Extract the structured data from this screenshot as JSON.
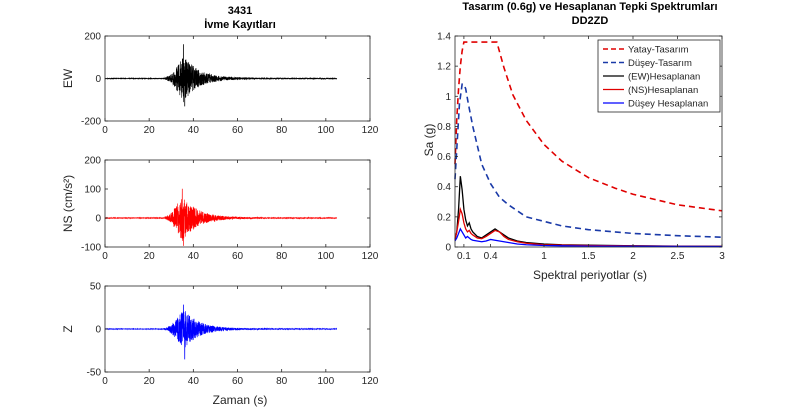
{
  "figure": {
    "left_title": "3431",
    "left_subtitle": "İvme Kayıtları",
    "right_title": "Tasarım (0.6g) ve Hesaplanan Tepki Spektrumları",
    "right_subtitle": "DD2ZD",
    "xlabel_left": "Zaman (s)",
    "xlabel_right": "Spektral periyotlar (s)",
    "ylabel_right": "Sa (g)"
  },
  "chart_data": [
    {
      "type": "line",
      "panel": "EW",
      "ylabel": "EW",
      "xlim": [
        0,
        120
      ],
      "ylim": [
        -200,
        200
      ],
      "xticks": [
        0,
        20,
        40,
        60,
        80,
        100,
        120
      ],
      "yticks": [
        -200,
        0,
        200
      ],
      "series": [
        {
          "color": "#000000",
          "record": {
            "start": 0,
            "end": 105,
            "onset": 27,
            "peak_time": 35.5,
            "peak": 160,
            "trough": -130,
            "coda_end": 72
          }
        }
      ]
    },
    {
      "type": "line",
      "panel": "NS",
      "ylabel": "NS (cm/s²)",
      "xlim": [
        0,
        120
      ],
      "ylim": [
        -100,
        200
      ],
      "xticks": [
        0,
        20,
        40,
        60,
        80,
        100,
        120
      ],
      "yticks": [
        -100,
        0,
        100,
        200
      ],
      "series": [
        {
          "color": "#ff0000",
          "record": {
            "start": 0,
            "end": 105,
            "onset": 27,
            "peak_time": 35,
            "peak": 100,
            "trough": -95,
            "coda_end": 72
          }
        }
      ]
    },
    {
      "type": "line",
      "panel": "Z",
      "ylabel": "Z",
      "xlim": [
        0,
        120
      ],
      "ylim": [
        -50,
        50
      ],
      "xticks": [
        0,
        20,
        40,
        60,
        80,
        100,
        120
      ],
      "yticks": [
        -50,
        0,
        50
      ],
      "series": [
        {
          "color": "#0000ff",
          "record": {
            "start": 0,
            "end": 105,
            "onset": 27,
            "peak_time": 35.5,
            "peak": 28,
            "trough": -35,
            "coda_end": 75
          }
        }
      ]
    },
    {
      "type": "line",
      "panel": "spectra",
      "xlim": [
        0,
        3
      ],
      "ylim": [
        0,
        1.4
      ],
      "xticks": [
        0.1,
        0.4,
        1,
        1.5,
        2,
        2.5,
        3
      ],
      "xtick_labels": [
        "0.1",
        "0.4",
        "1",
        "1.5",
        "2",
        "2.5",
        "3"
      ],
      "yticks": [
        0,
        0.2,
        0.4,
        0.6,
        0.8,
        1,
        1.2,
        1.4
      ],
      "ytick_labels": [
        "0",
        "0.2",
        "0.4",
        "0.6",
        "0.8",
        "1",
        "1.2",
        "1.4"
      ],
      "legend_position": "top-right",
      "series": [
        {
          "name": "Yatay-Tasarım",
          "color": "#e00000",
          "dash": true,
          "width": 1.6,
          "x": [
            0,
            0.02,
            0.04,
            0.06,
            0.08,
            0.1,
            0.12,
            0.15,
            0.2,
            0.3,
            0.4,
            0.47,
            0.55,
            0.65,
            0.8,
            1.0,
            1.2,
            1.5,
            1.8,
            2.0,
            2.5,
            3.0
          ],
          "y": [
            0.55,
            0.85,
            1.05,
            1.2,
            1.3,
            1.36,
            1.36,
            1.36,
            1.36,
            1.36,
            1.36,
            1.36,
            1.19,
            1.01,
            0.84,
            0.68,
            0.57,
            0.46,
            0.39,
            0.35,
            0.28,
            0.24
          ]
        },
        {
          "name": "Düşey-Tasarım",
          "color": "#1a3aa8",
          "dash": true,
          "width": 1.6,
          "x": [
            0,
            0.02,
            0.05,
            0.08,
            0.1,
            0.12,
            0.15,
            0.2,
            0.3,
            0.4,
            0.5,
            0.6,
            0.8,
            1.0,
            1.2,
            1.5,
            2.0,
            2.5,
            3.0
          ],
          "y": [
            0.45,
            0.65,
            0.95,
            1.08,
            1.08,
            1.05,
            0.95,
            0.8,
            0.55,
            0.42,
            0.33,
            0.28,
            0.2,
            0.17,
            0.14,
            0.115,
            0.09,
            0.075,
            0.065
          ]
        },
        {
          "name": "(EW)Hesaplanan",
          "color": "#000000",
          "dash": false,
          "width": 1.3,
          "x": [
            0,
            0.02,
            0.04,
            0.06,
            0.08,
            0.1,
            0.12,
            0.14,
            0.16,
            0.18,
            0.2,
            0.25,
            0.3,
            0.35,
            0.4,
            0.45,
            0.5,
            0.55,
            0.6,
            0.7,
            0.8,
            1.0,
            1.2,
            1.5,
            2.0,
            2.5,
            3.0
          ],
          "y": [
            0.05,
            0.1,
            0.25,
            0.47,
            0.38,
            0.25,
            0.18,
            0.14,
            0.16,
            0.12,
            0.1,
            0.07,
            0.06,
            0.08,
            0.1,
            0.12,
            0.1,
            0.08,
            0.06,
            0.04,
            0.03,
            0.02,
            0.015,
            0.012,
            0.008,
            0.006,
            0.005
          ]
        },
        {
          "name": "(NS)Hesaplanan",
          "color": "#e00000",
          "dash": false,
          "width": 1.3,
          "x": [
            0,
            0.02,
            0.04,
            0.06,
            0.08,
            0.1,
            0.12,
            0.14,
            0.16,
            0.18,
            0.2,
            0.25,
            0.3,
            0.35,
            0.4,
            0.45,
            0.5,
            0.55,
            0.6,
            0.7,
            0.8,
            1.0,
            1.2,
            1.5,
            2.0,
            2.5,
            3.0
          ],
          "y": [
            0.05,
            0.1,
            0.17,
            0.25,
            0.22,
            0.16,
            0.12,
            0.1,
            0.11,
            0.09,
            0.08,
            0.06,
            0.055,
            0.07,
            0.09,
            0.11,
            0.1,
            0.07,
            0.05,
            0.035,
            0.025,
            0.015,
            0.012,
            0.01,
            0.007,
            0.005,
            0.004
          ]
        },
        {
          "name": "Düşey Hesaplanan",
          "color": "#0000ff",
          "dash": false,
          "width": 1.3,
          "x": [
            0,
            0.02,
            0.04,
            0.06,
            0.08,
            0.1,
            0.12,
            0.14,
            0.16,
            0.18,
            0.2,
            0.25,
            0.3,
            0.35,
            0.4,
            0.45,
            0.5,
            0.6,
            0.7,
            0.8,
            1.0,
            1.2,
            1.5,
            2.0,
            2.5,
            3.0
          ],
          "y": [
            0.04,
            0.06,
            0.09,
            0.12,
            0.1,
            0.08,
            0.06,
            0.07,
            0.06,
            0.05,
            0.045,
            0.04,
            0.035,
            0.04,
            0.05,
            0.045,
            0.04,
            0.03,
            0.02,
            0.015,
            0.01,
            0.008,
            0.006,
            0.005,
            0.004,
            0.003
          ]
        }
      ]
    }
  ]
}
